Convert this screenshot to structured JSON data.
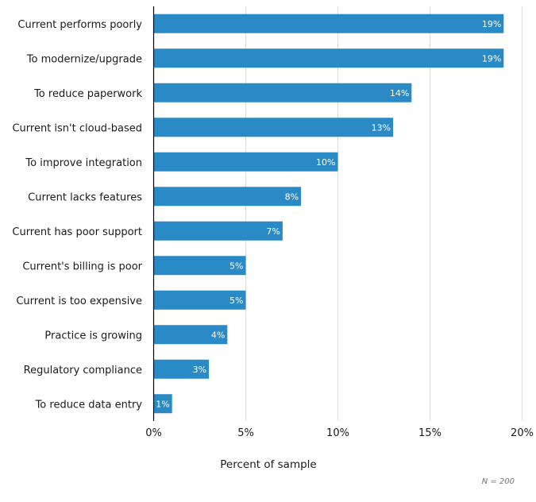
{
  "chart_data": {
    "type": "bar",
    "orientation": "horizontal",
    "title": "",
    "xlabel": "Percent of sample",
    "ylabel": "",
    "xlim": [
      0,
      20
    ],
    "grid": true,
    "categories": [
      "Current performs poorly",
      "To modernize/upgrade",
      "To reduce paperwork",
      "Current isn't cloud-based",
      "To improve integration",
      "Current lacks features",
      "Current has poor support",
      "Current's billing is poor",
      "Current is too expensive",
      "Practice is growing",
      "Regulatory compliance",
      "To reduce data entry"
    ],
    "values": [
      19,
      19,
      14,
      13,
      10,
      8,
      7,
      5,
      5,
      4,
      3,
      1
    ],
    "data_labels": [
      "19%",
      "19%",
      "14%",
      "13%",
      "10%",
      "8%",
      "7%",
      "5%",
      "5%",
      "4%",
      "3%",
      "1%"
    ],
    "ticks": [
      0,
      5,
      10,
      15,
      20
    ],
    "tick_labels": [
      "0%",
      "5%",
      "10%",
      "15%",
      "20%"
    ],
    "note": "N = 200",
    "bar_color": "#2a8ac6",
    "grid_color": "#dddddd"
  }
}
